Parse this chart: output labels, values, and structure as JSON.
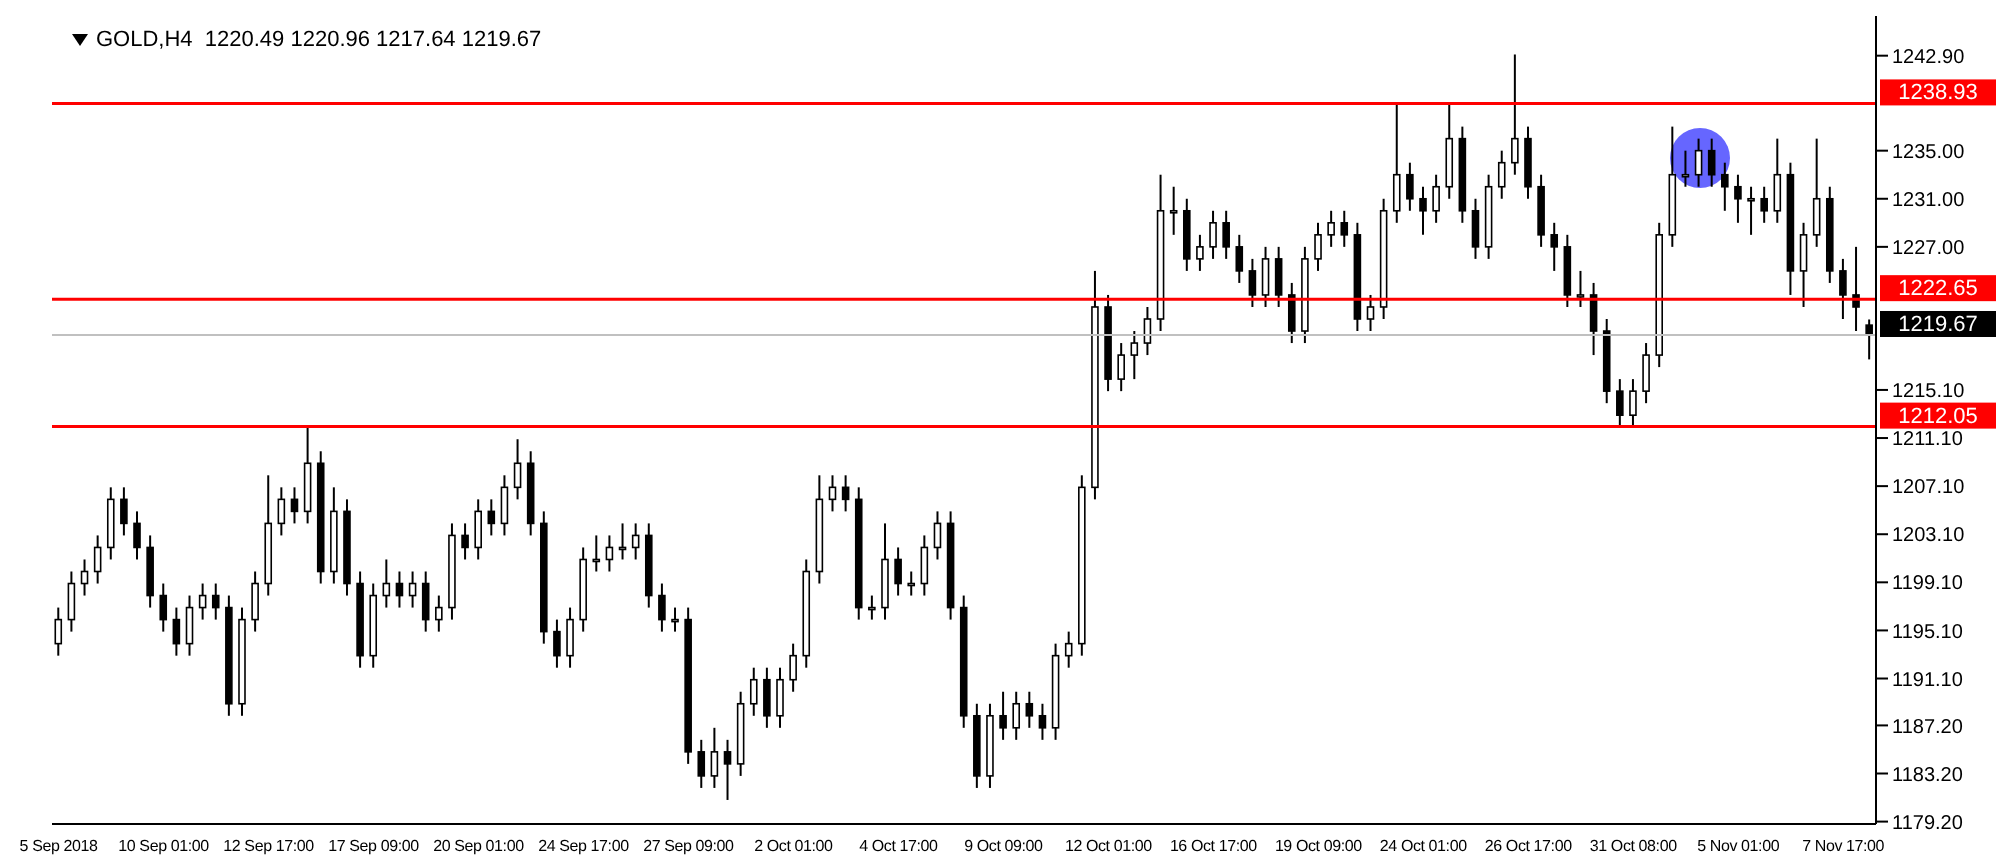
{
  "chart_data": {
    "type": "candlestick",
    "title": "GOLD,H4  1220.49 1220.96 1217.64 1219.67",
    "categories": [
      "5 Sep 2018",
      null,
      null,
      null,
      null,
      null,
      null,
      null,
      "10 Sep 01:00",
      null,
      null,
      null,
      null,
      null,
      null,
      null,
      "12 Sep 17:00",
      null,
      null,
      null,
      null,
      null,
      null,
      null,
      "17 Sep 09:00",
      null,
      null,
      null,
      null,
      null,
      null,
      null,
      "20 Sep 01:00",
      null,
      null,
      null,
      null,
      null,
      null,
      null,
      "24 Sep 17:00",
      null,
      null,
      null,
      null,
      null,
      null,
      null,
      "27 Sep 09:00",
      null,
      null,
      null,
      null,
      null,
      null,
      null,
      "2 Oct 01:00",
      null,
      null,
      null,
      null,
      null,
      null,
      null,
      "4 Oct 17:00",
      null,
      null,
      null,
      null,
      null,
      null,
      null,
      "9 Oct 09:00",
      null,
      null,
      null,
      null,
      null,
      null,
      null,
      "12 Oct 01:00",
      null,
      null,
      null,
      null,
      null,
      null,
      null,
      "16 Oct 17:00",
      null,
      null,
      null,
      null,
      null,
      null,
      null,
      "19 Oct 09:00",
      null,
      null,
      null,
      null,
      null,
      null,
      null,
      "24 Oct 01:00",
      null,
      null,
      null,
      null,
      null,
      null,
      null,
      "26 Oct 17:00",
      null,
      null,
      null,
      null,
      null,
      null,
      null,
      "31 Oct 08:00",
      null,
      null,
      null,
      null,
      null,
      null,
      null,
      "5 Nov 01:00",
      null,
      null,
      null,
      null,
      null,
      null,
      null,
      "7 Nov 17:00",
      null,
      null
    ],
    "color": "#000000",
    "ohlc": [
      [
        1194,
        1197,
        1193,
        1196
      ],
      [
        1196,
        1200,
        1195,
        1199
      ],
      [
        1199,
        1201,
        1198,
        1200
      ],
      [
        1200,
        1203,
        1199,
        1202
      ],
      [
        1202,
        1207,
        1201,
        1206
      ],
      [
        1206,
        1207,
        1203,
        1204
      ],
      [
        1204,
        1205,
        1201,
        1202
      ],
      [
        1202,
        1203,
        1197,
        1198
      ],
      [
        1198,
        1199,
        1195,
        1196
      ],
      [
        1196,
        1197,
        1193,
        1194
      ],
      [
        1194,
        1198,
        1193,
        1197
      ],
      [
        1197,
        1199,
        1196,
        1198
      ],
      [
        1198,
        1199,
        1196,
        1197
      ],
      [
        1197,
        1198,
        1188,
        1189
      ],
      [
        1189,
        1197,
        1188,
        1196
      ],
      [
        1196,
        1200,
        1195,
        1199
      ],
      [
        1199,
        1208,
        1198,
        1204
      ],
      [
        1204,
        1207,
        1203,
        1206
      ],
      [
        1206,
        1207,
        1204,
        1205
      ],
      [
        1205,
        1212,
        1204,
        1209
      ],
      [
        1209,
        1210,
        1199,
        1200
      ],
      [
        1200,
        1207,
        1199,
        1205
      ],
      [
        1205,
        1206,
        1198,
        1199
      ],
      [
        1199,
        1200,
        1192,
        1193
      ],
      [
        1193,
        1199,
        1192,
        1198
      ],
      [
        1198,
        1201,
        1197,
        1199
      ],
      [
        1199,
        1200,
        1197,
        1198
      ],
      [
        1198,
        1200,
        1197,
        1199
      ],
      [
        1199,
        1200,
        1195,
        1196
      ],
      [
        1196,
        1198,
        1195,
        1197
      ],
      [
        1197,
        1204,
        1196,
        1203
      ],
      [
        1203,
        1204,
        1201,
        1202
      ],
      [
        1202,
        1206,
        1201,
        1205
      ],
      [
        1205,
        1206,
        1203,
        1204
      ],
      [
        1204,
        1208,
        1203,
        1207
      ],
      [
        1207,
        1211,
        1206,
        1209
      ],
      [
        1209,
        1210,
        1203,
        1204
      ],
      [
        1204,
        1205,
        1194,
        1195
      ],
      [
        1195,
        1196,
        1192,
        1193
      ],
      [
        1193,
        1197,
        1192,
        1196
      ],
      [
        1196,
        1202,
        1195,
        1201
      ],
      [
        1201,
        1203,
        1200,
        1201
      ],
      [
        1201,
        1203,
        1200,
        1202
      ],
      [
        1202,
        1204,
        1201,
        1202
      ],
      [
        1202,
        1204,
        1201,
        1203
      ],
      [
        1203,
        1204,
        1197,
        1198
      ],
      [
        1198,
        1199,
        1195,
        1196
      ],
      [
        1196,
        1197,
        1195,
        1196
      ],
      [
        1196,
        1197,
        1184,
        1185
      ],
      [
        1185,
        1186,
        1182,
        1183
      ],
      [
        1183,
        1187,
        1182,
        1185
      ],
      [
        1185,
        1186,
        1181,
        1184
      ],
      [
        1184,
        1190,
        1183,
        1189
      ],
      [
        1189,
        1192,
        1188,
        1191
      ],
      [
        1191,
        1192,
        1187,
        1188
      ],
      [
        1188,
        1192,
        1187,
        1191
      ],
      [
        1191,
        1194,
        1190,
        1193
      ],
      [
        1193,
        1201,
        1192,
        1200
      ],
      [
        1200,
        1208,
        1199,
        1206
      ],
      [
        1206,
        1208,
        1205,
        1207
      ],
      [
        1207,
        1208,
        1205,
        1206
      ],
      [
        1206,
        1207,
        1196,
        1197
      ],
      [
        1197,
        1198,
        1196,
        1197
      ],
      [
        1197,
        1204,
        1196,
        1201
      ],
      [
        1201,
        1202,
        1198,
        1199
      ],
      [
        1199,
        1200,
        1198,
        1199
      ],
      [
        1199,
        1203,
        1198,
        1202
      ],
      [
        1202,
        1205,
        1201,
        1204
      ],
      [
        1204,
        1205,
        1196,
        1197
      ],
      [
        1197,
        1198,
        1187,
        1188
      ],
      [
        1188,
        1189,
        1182,
        1183
      ],
      [
        1183,
        1189,
        1182,
        1188
      ],
      [
        1188,
        1190,
        1186,
        1187
      ],
      [
        1187,
        1190,
        1186,
        1189
      ],
      [
        1189,
        1190,
        1187,
        1188
      ],
      [
        1188,
        1189,
        1186,
        1187
      ],
      [
        1187,
        1194,
        1186,
        1193
      ],
      [
        1193,
        1195,
        1192,
        1194
      ],
      [
        1194,
        1208,
        1193,
        1207
      ],
      [
        1207,
        1225,
        1206,
        1222
      ],
      [
        1222,
        1223,
        1215,
        1216
      ],
      [
        1216,
        1219,
        1215,
        1218
      ],
      [
        1218,
        1220,
        1216,
        1219
      ],
      [
        1219,
        1222,
        1218,
        1221
      ],
      [
        1221,
        1233,
        1220,
        1230
      ],
      [
        1230,
        1232,
        1228,
        1230
      ],
      [
        1230,
        1231,
        1225,
        1226
      ],
      [
        1226,
        1228,
        1225,
        1227
      ],
      [
        1227,
        1230,
        1226,
        1229
      ],
      [
        1229,
        1230,
        1226,
        1227
      ],
      [
        1227,
        1228,
        1224,
        1225
      ],
      [
        1225,
        1226,
        1222,
        1223
      ],
      [
        1223,
        1227,
        1222,
        1226
      ],
      [
        1226,
        1227,
        1222,
        1223
      ],
      [
        1223,
        1224,
        1219,
        1220
      ],
      [
        1220,
        1227,
        1219,
        1226
      ],
      [
        1226,
        1229,
        1225,
        1228
      ],
      [
        1228,
        1230,
        1227,
        1229
      ],
      [
        1229,
        1230,
        1227,
        1228
      ],
      [
        1228,
        1229,
        1220,
        1221
      ],
      [
        1221,
        1223,
        1220,
        1222
      ],
      [
        1222,
        1231,
        1221,
        1230
      ],
      [
        1230,
        1239,
        1229,
        1233
      ],
      [
        1233,
        1234,
        1230,
        1231
      ],
      [
        1231,
        1232,
        1228,
        1230
      ],
      [
        1230,
        1233,
        1229,
        1232
      ],
      [
        1232,
        1239,
        1231,
        1236
      ],
      [
        1236,
        1237,
        1229,
        1230
      ],
      [
        1230,
        1231,
        1226,
        1227
      ],
      [
        1227,
        1233,
        1226,
        1232
      ],
      [
        1232,
        1235,
        1231,
        1234
      ],
      [
        1234,
        1243,
        1233,
        1236
      ],
      [
        1236,
        1237,
        1231,
        1232
      ],
      [
        1232,
        1233,
        1227,
        1228
      ],
      [
        1228,
        1229,
        1225,
        1227
      ],
      [
        1227,
        1228,
        1222,
        1223
      ],
      [
        1223,
        1225,
        1222,
        1223
      ],
      [
        1223,
        1224,
        1218,
        1220
      ],
      [
        1220,
        1221,
        1214,
        1215
      ],
      [
        1215,
        1216,
        1212,
        1213
      ],
      [
        1213,
        1216,
        1212,
        1215
      ],
      [
        1215,
        1219,
        1214,
        1218
      ],
      [
        1218,
        1229,
        1217,
        1228
      ],
      [
        1228,
        1237,
        1227,
        1233
      ],
      [
        1233,
        1235,
        1232,
        1233
      ],
      [
        1233,
        1236,
        1232,
        1235
      ],
      [
        1235,
        1236,
        1232,
        1233
      ],
      [
        1233,
        1234,
        1230,
        1232
      ],
      [
        1232,
        1233,
        1229,
        1231
      ],
      [
        1231,
        1232,
        1228,
        1231
      ],
      [
        1231,
        1232,
        1229,
        1230
      ],
      [
        1230,
        1236,
        1229,
        1233
      ],
      [
        1233,
        1234,
        1223,
        1225
      ],
      [
        1225,
        1229,
        1222,
        1228
      ],
      [
        1228,
        1236,
        1227,
        1231
      ],
      [
        1231,
        1232,
        1224,
        1225
      ],
      [
        1225,
        1226,
        1221,
        1223
      ],
      [
        1223,
        1227,
        1220,
        1222
      ],
      [
        1220.49,
        1220.96,
        1217.64,
        1219.67
      ]
    ],
    "ylim": [
      1179.0,
      1246.2
    ],
    "yticks": [
      {
        "value": 1242.9,
        "label": "1242.90"
      },
      {
        "value": 1235,
        "label": "1235.00"
      },
      {
        "value": 1231,
        "label": "1231.00"
      },
      {
        "value": 1227,
        "label": "1227.00"
      },
      {
        "value": 1215.1,
        "label": "1215.10"
      },
      {
        "value": 1211.1,
        "label": "1211.10"
      },
      {
        "value": 1207.1,
        "label": "1207.10"
      },
      {
        "value": 1203.1,
        "label": "1203.10"
      },
      {
        "value": 1199.1,
        "label": "1199.10"
      },
      {
        "value": 1195.1,
        "label": "1195.10"
      },
      {
        "value": 1191.1,
        "label": "1191.10"
      },
      {
        "value": 1187.2,
        "label": "1187.20"
      },
      {
        "value": 1183.2,
        "label": "1183.20"
      },
      {
        "value": 1179.2,
        "label": "1179.20"
      }
    ],
    "ref_lines": [
      {
        "axis": "y",
        "value": 1238.93,
        "label": "1238.93",
        "color": "#ff0000"
      },
      {
        "axis": "y",
        "value": 1222.65,
        "label": "1222.65",
        "color": "#ff0000"
      },
      {
        "axis": "y",
        "value": 1212.05,
        "label": "1212.05",
        "color": "#ff0000"
      },
      {
        "axis": "y",
        "value": 1219.67,
        "label": "1219.67",
        "color": "#c0c0c0"
      }
    ],
    "grid": false
  }
}
